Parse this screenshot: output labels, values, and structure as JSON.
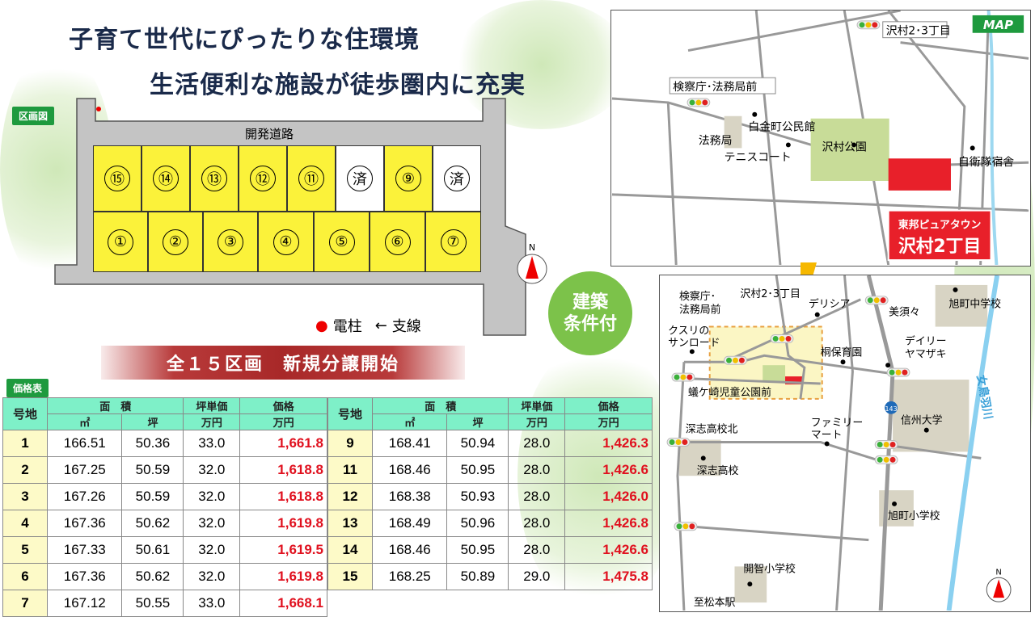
{
  "headline": {
    "line1": "子育て世代にぴったりな住環境",
    "line2": "生活便利な施設が徒歩圏内に充実"
  },
  "lot_plan": {
    "tag": "区画図",
    "road_label": "開発道路",
    "top_row": [
      "⑮",
      "⑭",
      "⑬",
      "⑫",
      "⑪",
      "済",
      "⑨",
      "済"
    ],
    "bottom_row": [
      "①",
      "②",
      "③",
      "④",
      "⑤",
      "⑥",
      "⑦"
    ],
    "sold_label": "済",
    "legend_pole": "電柱",
    "legend_guy": "支線",
    "north": "N"
  },
  "banner": "全１５区画　新規分譲開始",
  "badge": {
    "line1": "建築",
    "line2": "条件付"
  },
  "price_table": {
    "tag": "価格表",
    "headers": {
      "lot": "号地",
      "area": "面　積",
      "sqm": "㎡",
      "tsubo": "坪",
      "unit_price": "坪単価",
      "price": "価格",
      "man_yen": "万円"
    },
    "left": [
      [
        "1",
        "166.51",
        "50.36",
        "33.0",
        "1,661.8"
      ],
      [
        "2",
        "167.25",
        "50.59",
        "32.0",
        "1,618.8"
      ],
      [
        "3",
        "167.26",
        "50.59",
        "32.0",
        "1,618.8"
      ],
      [
        "4",
        "167.36",
        "50.62",
        "32.0",
        "1,619.8"
      ],
      [
        "5",
        "167.33",
        "50.61",
        "32.0",
        "1,619.5"
      ],
      [
        "6",
        "167.36",
        "50.62",
        "32.0",
        "1,619.8"
      ],
      [
        "7",
        "167.12",
        "50.55",
        "33.0",
        "1,668.1"
      ]
    ],
    "right": [
      [
        "9",
        "168.41",
        "50.94",
        "28.0",
        "1,426.3"
      ],
      [
        "11",
        "168.46",
        "50.95",
        "28.0",
        "1,426.6"
      ],
      [
        "12",
        "168.38",
        "50.93",
        "28.0",
        "1,426.0"
      ],
      [
        "13",
        "168.49",
        "50.96",
        "28.0",
        "1,426.8"
      ],
      [
        "14",
        "168.46",
        "50.95",
        "28.0",
        "1,426.6"
      ],
      [
        "15",
        "168.25",
        "50.89",
        "29.0",
        "1,475.8"
      ]
    ]
  },
  "map_detail": {
    "badge": "MAP",
    "sawamura23": "沢村2･3丁目",
    "kensatsu": "検察庁･法務局前",
    "homukyoku": "法務局",
    "shirokane": "白金町公民館",
    "tennis": "テニスコート",
    "sawamura_park": "沢村公園",
    "jieitai": "自衛隊宿舎",
    "site_line1": "東邦ピュアタウン",
    "site_line2": "沢村2丁目"
  },
  "map_area": {
    "kensatsu1": "検察庁･",
    "kensatsu2": "法務局前",
    "sawamura23": "沢村2･3丁目",
    "delicia": "デリシア",
    "misuzu": "美須々",
    "asahi_jh": "旭町中学校",
    "kusuri1": "クスリの",
    "kusuri2": "サンロード",
    "kiri": "桐保育園",
    "daily1": "デイリー",
    "daily2": "ヤマザキ",
    "river": "女鳥羽川",
    "ari": "蟻ケ崎児童公園前",
    "route": "143",
    "shinshu": "信州大学",
    "fukashi_n": "深志高校北",
    "family1": "ファミリー",
    "family2": "マート",
    "fukashi": "深志高校",
    "asahi_es": "旭町小学校",
    "kaichi": "開智小学校",
    "station": "至松本駅",
    "north": "N"
  },
  "colors": {
    "lot_yellow": "#fbf23a",
    "price_red": "#e0101e",
    "header_green": "#7ef0c8",
    "site_red": "#e8202a",
    "badge_green": "#7cc24a"
  }
}
